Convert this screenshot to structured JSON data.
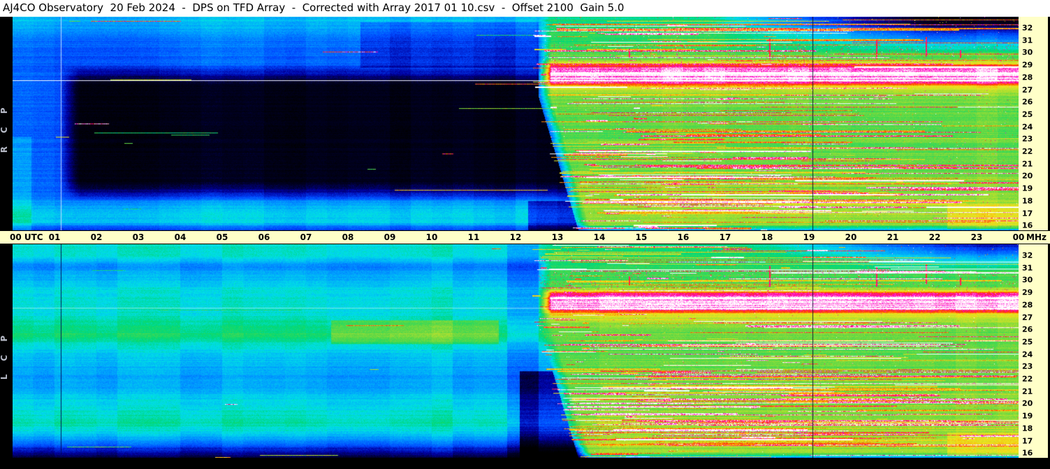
{
  "header": {
    "title": "AJ4CO Observatory  20 Feb 2024  -  DPS on TFD Array  -  Corrected with Array 2017 01 10.csv  -  Offset 2100  Gain 5.0",
    "observatory": "AJ4CO Observatory",
    "date": "20 Feb 2024",
    "instrument": "DPS on TFD Array",
    "correction": "Corrected with Array 2017 01 10.csv",
    "offset": "Offset 2100",
    "gain": "Gain 5.0"
  },
  "axes": {
    "time_ticks": [
      "00 UTC",
      "01",
      "02",
      "03",
      "04",
      "05",
      "06",
      "07",
      "08",
      "09",
      "10",
      "11",
      "12",
      "13",
      "14",
      "15",
      "16",
      "17",
      "18",
      "19",
      "20",
      "21",
      "22",
      "23",
      "00"
    ],
    "freq_ticks": [
      "32",
      "31",
      "30",
      "29",
      "28",
      "27",
      "26",
      "25",
      "24",
      "23",
      "22",
      "21",
      "20",
      "19",
      "18",
      "17",
      "16"
    ],
    "freq_unit": "MHz"
  },
  "panels": [
    {
      "id": "rcp",
      "label": "RCP"
    },
    {
      "id": "lcp",
      "label": "LCP"
    }
  ],
  "colors": {
    "titlebar_bg": "#ffffff",
    "title_text": "#000000",
    "frame_bg": "#000000",
    "scale_bg": "#ffffc8",
    "tick_text": "#000000",
    "side_label_text": "#b8bcc8",
    "palette": [
      {
        "v": 0.0,
        "c": "#000000"
      },
      {
        "v": 0.1,
        "c": "#000028"
      },
      {
        "v": 0.2,
        "c": "#0000a0"
      },
      {
        "v": 0.3,
        "c": "#0048ff"
      },
      {
        "v": 0.4,
        "c": "#00a0ff"
      },
      {
        "v": 0.48,
        "c": "#00e0e8"
      },
      {
        "v": 0.56,
        "c": "#00d878"
      },
      {
        "v": 0.64,
        "c": "#58d848"
      },
      {
        "v": 0.72,
        "c": "#b0e030"
      },
      {
        "v": 0.8,
        "c": "#f0e420"
      },
      {
        "v": 0.86,
        "c": "#ffa000"
      },
      {
        "v": 0.91,
        "c": "#ff3800"
      },
      {
        "v": 0.955,
        "c": "#ff00cc"
      },
      {
        "v": 1.0,
        "c": "#ffffff"
      }
    ]
  },
  "chart_data": [
    {
      "type": "heatmap",
      "polarization": "RCP",
      "title": "RCP dynamic spectrum (right circular polarization)",
      "xlabel": "UTC",
      "ylabel": "MHz",
      "x_range": [
        0,
        24
      ],
      "y_range": [
        16,
        32
      ],
      "x_ticks": [
        "00 UTC",
        "01",
        "02",
        "03",
        "04",
        "05",
        "06",
        "07",
        "08",
        "09",
        "10",
        "11",
        "12",
        "13",
        "14",
        "15",
        "16",
        "17",
        "18",
        "19",
        "20",
        "21",
        "22",
        "23",
        "00"
      ],
      "y_ticks": [
        32,
        31,
        30,
        29,
        28,
        27,
        26,
        25,
        24,
        23,
        22,
        21,
        20,
        19,
        18,
        17,
        16
      ],
      "legend": "none",
      "marker_lines_utc": [
        1.15,
        19.08
      ],
      "features": [
        "00:00-12:30 UTC quiet night side: blue/cyan background",
        "large dark low-power region ~18-28 MHz from ~01:10 to ~12:30 UTC",
        "bright cyan rows near 16-17.5 MHz through the night",
        "sharp day/night transition near 12:30 UTC, occurring later at lower frequencies (ionospheric cutoff wedge)",
        "12:30-24:00 UTC day side: green/yellow background densely covered by horizontal RFI streaks (orange/red/magenta/white)",
        "saturated white shortwave band ~27-28.4 MHz on the day side",
        "thin white horizontal line at ~27.25 MHz across the full 24 h",
        "darkening above ~29 MHz toward the top-right corner (18-24 UTC)",
        "vertical timing marker lines near 01:09 (light) and 19:05 UTC (dark)",
        "short vertical red RFI dashes near 29-30.5 MHz around 14:42, 18:03, 20:36, 21:47, 22:36 UTC"
      ],
      "render": {
        "seed": 13,
        "col_amp": 1.0,
        "day_night_boundary_utc": 12.55,
        "boundary_freq_curve": 0.095,
        "transition_smooth_h": 0.3,
        "night_profile": [
          [
            32,
            0.44
          ],
          [
            31.4,
            0.43
          ],
          [
            30.6,
            0.37
          ],
          [
            29.6,
            0.34
          ],
          [
            28.6,
            0.33
          ],
          [
            26.0,
            0.33
          ],
          [
            22.0,
            0.33
          ],
          [
            20.0,
            0.34
          ],
          [
            18.6,
            0.35
          ],
          [
            17.9,
            0.41
          ],
          [
            17.3,
            0.47
          ],
          [
            16.6,
            0.46
          ],
          [
            16.2,
            0.34
          ],
          [
            16.0,
            0.27
          ]
        ],
        "night_blob": {
          "t_start": 1.12,
          "f_low": 18.1,
          "f_high": 28.4,
          "depth": 0.27,
          "edge_f": 1.5
        },
        "night_patches": [
          {
            "t0": 8.3,
            "t1": 12.6,
            "f0": 28.2,
            "f1": 31.6,
            "delta": -0.07
          },
          {
            "t0": 0.0,
            "t1": 0.45,
            "f0": 16.0,
            "f1": 23.0,
            "delta": 0.06
          },
          {
            "t0": 12.3,
            "t1": 13.6,
            "f0": 16.0,
            "f1": 18.2,
            "delta": -0.17
          }
        ],
        "day_profile": [
          [
            32,
            0.56
          ],
          [
            30.6,
            0.6
          ],
          [
            29.5,
            0.62
          ],
          [
            28.8,
            0.66
          ],
          [
            28.5,
            0.78
          ],
          [
            28.3,
            0.96
          ],
          [
            28.0,
            1.0
          ],
          [
            27.2,
            1.0
          ],
          [
            27.0,
            0.92
          ],
          [
            26.75,
            0.8
          ],
          [
            26.3,
            0.7
          ],
          [
            25.5,
            0.66
          ],
          [
            24.0,
            0.65
          ],
          [
            22.5,
            0.65
          ],
          [
            21.0,
            0.66
          ],
          [
            19.5,
            0.68
          ],
          [
            18.2,
            0.7
          ],
          [
            17.0,
            0.71
          ],
          [
            16.4,
            0.69
          ],
          [
            16.15,
            0.52
          ],
          [
            16.0,
            0.34
          ]
        ],
        "day_patches": [
          {
            "t0": 22.3,
            "t1": 24.0,
            "f0": 16.1,
            "f1": 17.9,
            "delta": 0.09
          }
        ],
        "corner_dark": {
          "f_start": 29.2,
          "t_start": 16.5,
          "strength": 0.5
        },
        "streaks": {
          "day_count": 240,
          "night_count": 16,
          "day_intensity": [
            0.76,
            1.06
          ],
          "night_intensity": [
            0.5,
            1.0
          ],
          "band_extra": {
            "count": 80,
            "f0": 17.0,
            "f1": 22.5
          }
        },
        "speckle_p": 0.006,
        "magenta_band": {
          "f0": 28.3,
          "f1": 29.9,
          "p": 0.03
        },
        "rfi_marks": [
          {
            "utc": 14.7,
            "f0": 28.9,
            "f1": 29.6
          },
          {
            "utc": 18.05,
            "f0": 28.8,
            "f1": 30.4
          },
          {
            "utc": 20.6,
            "f0": 28.8,
            "f1": 30.3
          },
          {
            "utc": 21.78,
            "f0": 29.0,
            "f1": 30.5
          },
          {
            "utc": 22.6,
            "f0": 28.9,
            "f1": 29.5
          }
        ],
        "vmarks_intensity": 0.93,
        "vlines": [
          {
            "utc": 1.15,
            "color": "rgba(215,228,255,0.9)"
          },
          {
            "utc": 19.08,
            "color": "rgba(0,0,40,0.85)"
          }
        ],
        "hlines": [
          {
            "freq": 27.25,
            "color": "rgba(250,252,255,0.95)"
          }
        ]
      }
    },
    {
      "type": "heatmap",
      "polarization": "LCP",
      "title": "LCP dynamic spectrum (left circular polarization)",
      "xlabel": "UTC",
      "ylabel": "MHz",
      "x_range": [
        0,
        24
      ],
      "y_range": [
        16,
        32
      ],
      "x_ticks": [
        "00 UTC",
        "01",
        "02",
        "03",
        "04",
        "05",
        "06",
        "07",
        "08",
        "09",
        "10",
        "11",
        "12",
        "13",
        "14",
        "15",
        "16",
        "17",
        "18",
        "19",
        "20",
        "21",
        "22",
        "23",
        "00"
      ],
      "y_ticks": [
        32,
        31,
        30,
        29,
        28,
        27,
        26,
        25,
        24,
        23,
        22,
        21,
        20,
        19,
        18,
        17,
        16
      ],
      "legend": "none",
      "marker_lines_utc": [
        1.15,
        19.08
      ],
      "features": [
        "night side brighter than RCP: smooth banded cyan/green structure",
        "bright green band near 25 MHz and near 18.5 MHz through the night",
        "yellow-green enhancement ~24.5-26.3 MHz between ~07:35 and ~11:35 UTC",
        "dark band below 17 MHz all night, near-black at 16 MHz",
        "dark wedge 16-22 MHz just before the ~12:30 UTC day transition",
        "day side similar to RCP: green/yellow base, dense RFI streaks, white band 27-28.4 MHz",
        "vertical timing marker lines near 01:09 and 19:05 UTC (both dark)",
        "short vertical red RFI dashes near 29-30.5 MHz (same times as RCP)"
      ],
      "render": {
        "seed": 77,
        "col_amp": 0.8,
        "day_night_boundary_utc": 12.55,
        "boundary_freq_curve": 0.095,
        "transition_smooth_h": 0.3,
        "night_profile": [
          [
            32,
            0.5
          ],
          [
            31.2,
            0.5
          ],
          [
            30.3,
            0.38
          ],
          [
            29.4,
            0.44
          ],
          [
            28.7,
            0.48
          ],
          [
            27.6,
            0.5
          ],
          [
            26.9,
            0.49
          ],
          [
            26.1,
            0.53
          ],
          [
            25.2,
            0.58
          ],
          [
            24.4,
            0.5
          ],
          [
            23.4,
            0.44
          ],
          [
            22.4,
            0.41
          ],
          [
            21.4,
            0.41
          ],
          [
            20.4,
            0.46
          ],
          [
            19.4,
            0.5
          ],
          [
            18.6,
            0.53
          ],
          [
            17.8,
            0.46
          ],
          [
            17.1,
            0.34
          ],
          [
            16.5,
            0.22
          ],
          [
            16.0,
            0.1
          ]
        ],
        "night_blob": null,
        "night_patches": [
          {
            "t0": 7.6,
            "t1": 11.6,
            "f0": 24.5,
            "f1": 26.3,
            "delta": 0.1
          },
          {
            "t0": 11.8,
            "t1": 12.55,
            "f0": 16.0,
            "f1": 32.0,
            "delta": -0.07
          },
          {
            "t0": 12.1,
            "t1": 13.6,
            "f0": 16.0,
            "f1": 22.5,
            "delta": -0.2
          }
        ],
        "day_profile": [
          [
            32,
            0.56
          ],
          [
            30.6,
            0.6
          ],
          [
            29.5,
            0.62
          ],
          [
            28.8,
            0.66
          ],
          [
            28.5,
            0.78
          ],
          [
            28.3,
            0.96
          ],
          [
            28.0,
            1.0
          ],
          [
            27.2,
            1.0
          ],
          [
            27.0,
            0.92
          ],
          [
            26.75,
            0.8
          ],
          [
            26.3,
            0.7
          ],
          [
            25.5,
            0.66
          ],
          [
            24.0,
            0.65
          ],
          [
            22.5,
            0.65
          ],
          [
            21.0,
            0.66
          ],
          [
            19.5,
            0.68
          ],
          [
            18.2,
            0.7
          ],
          [
            17.0,
            0.71
          ],
          [
            16.4,
            0.69
          ],
          [
            16.15,
            0.52
          ],
          [
            16.0,
            0.34
          ]
        ],
        "day_patches": [
          {
            "t0": 22.3,
            "t1": 24.0,
            "f0": 16.1,
            "f1": 17.9,
            "delta": 0.08
          }
        ],
        "corner_dark": {
          "f_start": 30.0,
          "t_start": 17.5,
          "strength": 0.42
        },
        "streaks": {
          "day_count": 260,
          "night_count": 9,
          "day_intensity": [
            0.76,
            1.06
          ],
          "night_intensity": [
            0.55,
            1.0
          ],
          "band_extra": {
            "count": 80,
            "f0": 17.0,
            "f1": 22.5
          }
        },
        "speckle_p": 0.006,
        "magenta_band": {
          "f0": 28.3,
          "f1": 29.9,
          "p": 0.03
        },
        "rfi_marks": [
          {
            "utc": 14.7,
            "f0": 28.9,
            "f1": 29.6
          },
          {
            "utc": 18.05,
            "f0": 28.8,
            "f1": 30.4
          },
          {
            "utc": 20.6,
            "f0": 28.8,
            "f1": 30.3
          },
          {
            "utc": 21.78,
            "f0": 29.0,
            "f1": 30.5
          },
          {
            "utc": 22.6,
            "f0": 28.9,
            "f1": 29.5
          }
        ],
        "vmarks_intensity": 0.93,
        "vlines": [
          {
            "utc": 1.15,
            "color": "rgba(0,8,80,0.9)"
          },
          {
            "utc": 19.08,
            "color": "rgba(0,0,40,0.85)"
          }
        ],
        "hlines": [
          {
            "freq": 27.25,
            "color": "rgba(250,252,255,0.5)"
          }
        ]
      }
    }
  ]
}
